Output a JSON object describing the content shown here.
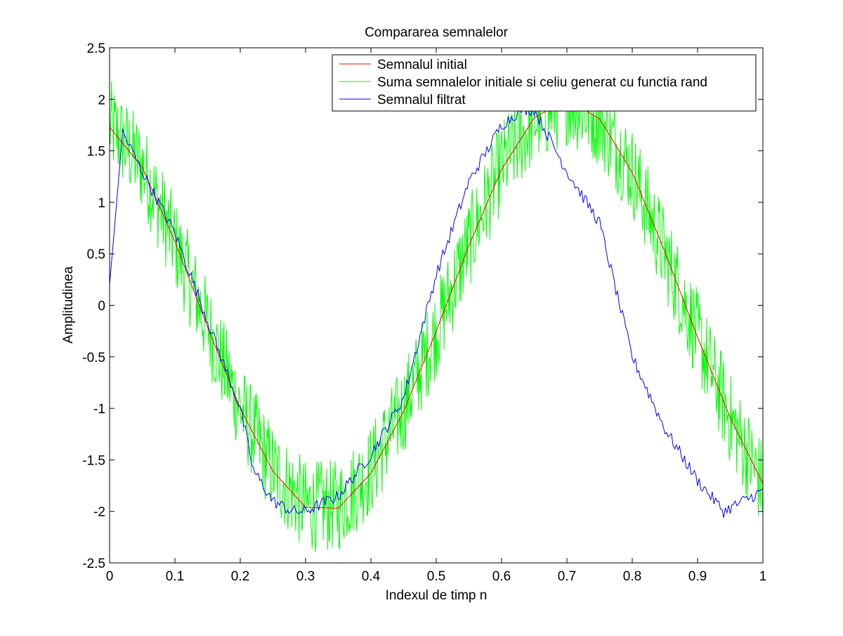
{
  "chart_data": {
    "type": "line",
    "title": "Compararea semnalelor",
    "xlabel": "Indexul de timp n",
    "ylabel": "Amplitudinea",
    "xlim": [
      0,
      1
    ],
    "ylim": [
      -2.5,
      2.5
    ],
    "xticks": [
      0,
      0.1,
      0.2,
      0.3,
      0.4,
      0.5,
      0.6,
      0.7,
      0.8,
      0.9,
      1
    ],
    "xtick_labels": [
      "0",
      "0.1",
      "0.2",
      "0.3",
      "0.4",
      "0.5",
      "0.6",
      "0.7",
      "0.8",
      "0.9",
      "1"
    ],
    "yticks": [
      -2.5,
      -2,
      -1.5,
      -1,
      -0.5,
      0,
      0.5,
      1,
      1.5,
      2,
      2.5
    ],
    "ytick_labels": [
      "-2.5",
      "-2",
      "-1.5",
      "-1",
      "-0.5",
      "0",
      "0.5",
      "1",
      "1.5",
      "2",
      "2.5"
    ],
    "grid": false,
    "legend_position": "top-right",
    "series": [
      {
        "name": "Semnalul initial",
        "color": "#ff0000",
        "x": [
          0,
          0.05,
          0.1,
          0.15,
          0.2,
          0.25,
          0.3,
          0.35,
          0.4,
          0.45,
          0.5,
          0.55,
          0.6,
          0.65,
          0.7,
          0.75,
          0.8,
          0.85,
          0.9,
          0.95,
          1
        ],
        "y": [
          1.73,
          1.34,
          0.62,
          -0.21,
          -1.0,
          -1.61,
          -1.96,
          -1.97,
          -1.63,
          -1.03,
          -0.25,
          0.58,
          1.32,
          1.82,
          2.0,
          1.81,
          1.29,
          0.52,
          -0.31,
          -1.09,
          -1.73
        ]
      },
      {
        "name": "Suma semnalelor initiale si celiu generat cu functia rand",
        "color": "#00ff00",
        "x": [
          0,
          0.05,
          0.1,
          0.15,
          0.2,
          0.25,
          0.3,
          0.35,
          0.4,
          0.45,
          0.5,
          0.55,
          0.6,
          0.65,
          0.7,
          0.75,
          0.8,
          0.85,
          0.9,
          0.95,
          1
        ],
        "y": [
          1.75,
          1.35,
          0.6,
          -0.2,
          -1.0,
          -1.6,
          -1.95,
          -1.95,
          -1.6,
          -1.0,
          -0.25,
          0.6,
          1.35,
          1.8,
          2.0,
          1.8,
          1.3,
          0.5,
          -0.3,
          -1.1,
          -1.75
        ],
        "noise_amplitude": 0.45
      },
      {
        "name": "Semnalul filtrat",
        "color": "#0000ff",
        "x": [
          0,
          0.02,
          0.05,
          0.1,
          0.15,
          0.2,
          0.22,
          0.25,
          0.28,
          0.3,
          0.35,
          0.4,
          0.45,
          0.5,
          0.55,
          0.6,
          0.63,
          0.65,
          0.7,
          0.75,
          0.8,
          0.85,
          0.9,
          0.94,
          1
        ],
        "y": [
          0.2,
          1.68,
          1.3,
          0.7,
          -0.15,
          -1.0,
          -1.6,
          -1.9,
          -2.0,
          -2.0,
          -1.85,
          -1.45,
          -0.9,
          0.3,
          1.2,
          1.75,
          1.9,
          1.9,
          1.3,
          0.8,
          -0.5,
          -1.2,
          -1.7,
          -2.0,
          -1.8
        ]
      }
    ]
  }
}
